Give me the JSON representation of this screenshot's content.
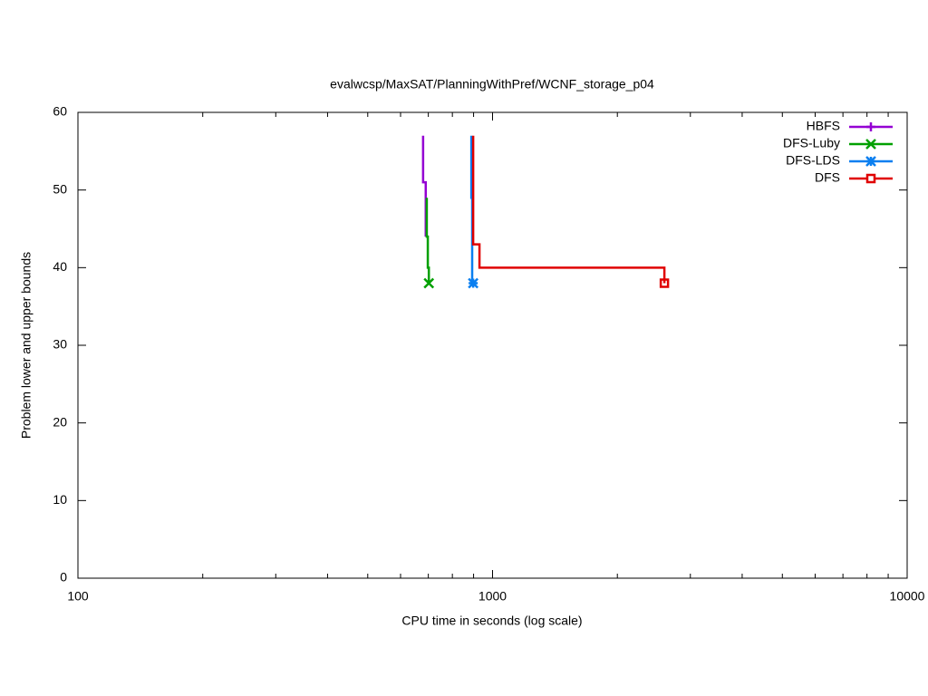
{
  "chart_data": {
    "type": "line",
    "title": "evalwcsp/MaxSAT/PlanningWithPref/WCNF_storage_p04",
    "x_label": "CPU time in seconds (log scale)",
    "y_label": "Problem lower and upper bounds",
    "x_scale": "log",
    "xlim": [
      100,
      10000
    ],
    "xticks": [
      100,
      1000,
      10000
    ],
    "xminorticks": [
      200,
      300,
      400,
      500,
      600,
      700,
      800,
      900,
      2000,
      3000,
      4000,
      5000,
      6000,
      7000,
      8000,
      9000
    ],
    "ylim": [
      0,
      60
    ],
    "yticks": [
      0,
      10,
      20,
      30,
      40,
      50,
      60
    ],
    "legend": "top-right",
    "series": [
      {
        "name": "HBFS",
        "color": "#9400d3",
        "marker": "plus",
        "x": [
          680,
          680,
          690,
          690
        ],
        "values": [
          57,
          51,
          51,
          44
        ]
      },
      {
        "name": "DFS-Luby",
        "color": "#00a000",
        "marker": "cross",
        "x": [
          694,
          694,
          698,
          698,
          702,
          702
        ],
        "values": [
          49,
          44,
          44,
          40,
          40,
          38
        ]
      },
      {
        "name": "DFS-LDS",
        "color": "#0a7ff0",
        "marker": "star",
        "x": [
          889,
          889,
          893,
          893,
          898
        ],
        "values": [
          57,
          49,
          49,
          38,
          38
        ]
      },
      {
        "name": "DFS",
        "color": "#e00000",
        "marker": "square",
        "x": [
          898,
          898,
          930,
          930,
          2597,
          2597
        ],
        "values": [
          57,
          43,
          43,
          40,
          40,
          38
        ]
      }
    ]
  }
}
